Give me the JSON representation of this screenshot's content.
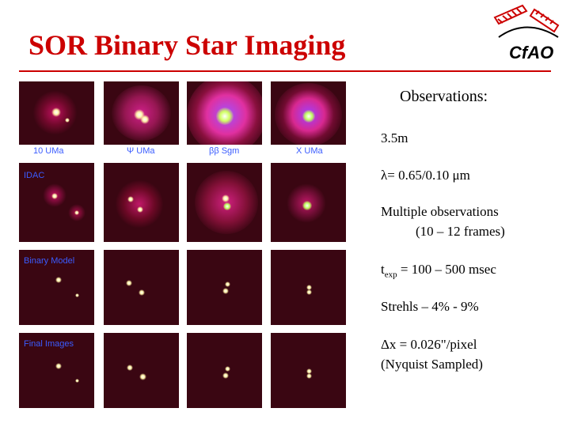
{
  "header": {
    "title": "SOR Binary Star Imaging",
    "logo_text": "CfAO"
  },
  "grid": {
    "row_labels": [
      [
        "10 UMa",
        "Ψ UMa",
        "ββ Sgm",
        "X UMa"
      ],
      [
        "IDAC"
      ],
      [
        "Binary Model"
      ],
      [
        "Final Images"
      ]
    ]
  },
  "observations": {
    "heading": "Observations:",
    "aperture": "3.5m",
    "wavelength": "λ= 0.65/0.10 μm",
    "multiple_line1": "Multiple observations",
    "multiple_line2": "(10 – 12 frames)",
    "texp_prefix": "t",
    "texp_sub": "exp",
    "texp_value": " = 100 – 500 msec",
    "strehls": "Strehls – 4% - 9%",
    "pixel": "Δx = 0.026\"/pixel",
    "nyquist": "(Nyquist Sampled)"
  },
  "colors": {
    "title": "#cc0000",
    "label": "#3a5cff",
    "panel_bg": "#3a0612"
  }
}
